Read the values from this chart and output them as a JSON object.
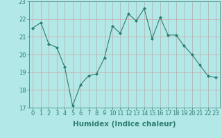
{
  "x": [
    0,
    1,
    2,
    3,
    4,
    5,
    6,
    7,
    8,
    9,
    10,
    11,
    12,
    13,
    14,
    15,
    16,
    17,
    18,
    19,
    20,
    21,
    22,
    23
  ],
  "y": [
    21.5,
    21.8,
    20.6,
    20.4,
    19.3,
    17.1,
    18.3,
    18.8,
    18.9,
    19.8,
    21.6,
    21.2,
    22.3,
    21.9,
    22.6,
    20.9,
    22.1,
    21.1,
    21.1,
    20.5,
    20.0,
    19.4,
    18.8,
    18.7
  ],
  "xlabel": "Humidex (Indice chaleur)",
  "xlim": [
    -0.5,
    23.5
  ],
  "ylim": [
    17,
    23
  ],
  "yticks": [
    17,
    18,
    19,
    20,
    21,
    22,
    23
  ],
  "xticks": [
    0,
    1,
    2,
    3,
    4,
    5,
    6,
    7,
    8,
    9,
    10,
    11,
    12,
    13,
    14,
    15,
    16,
    17,
    18,
    19,
    20,
    21,
    22,
    23
  ],
  "line_color": "#2d7d6e",
  "bg_color": "#b2e8e8",
  "grid_color": "#d4a0a0",
  "marker": "D",
  "marker_size": 2.0,
  "line_width": 0.8,
  "xlabel_fontsize": 7.5,
  "tick_fontsize": 6.0
}
